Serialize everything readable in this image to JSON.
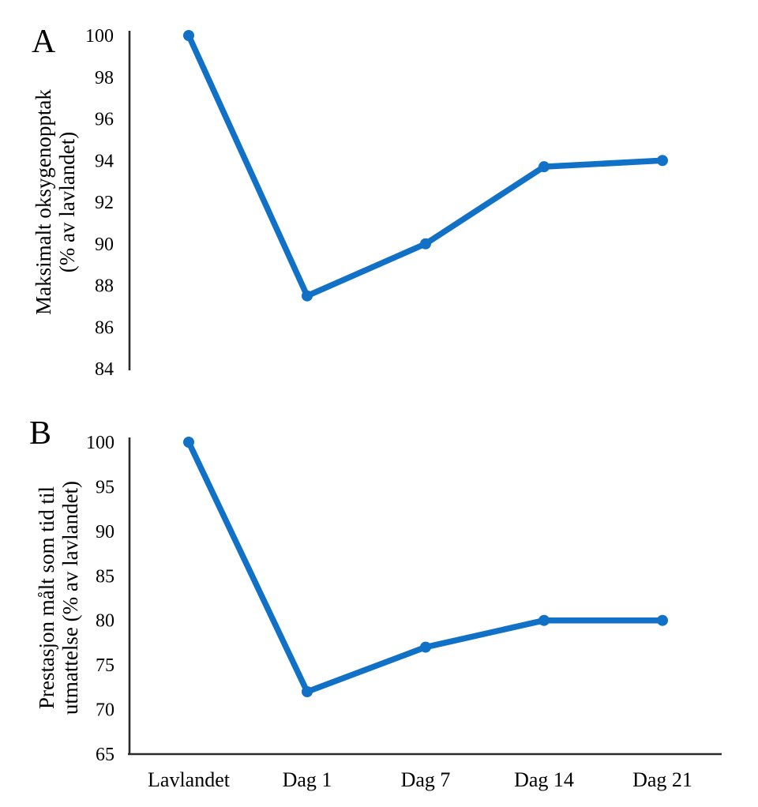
{
  "figure": {
    "description_panels": [
      "A",
      "B"
    ],
    "x_axis_categories": [
      "Lavlandet",
      "Dag 1",
      "Dag 7",
      "Dag 14",
      "Dag 21"
    ]
  },
  "colors": {
    "line": "#1171C6",
    "axis": "#2b2b2b",
    "text": "#000000"
  },
  "chart_data": [
    {
      "type": "line",
      "panel_label": "A",
      "categories": [
        "Lavlandet",
        "Dag 1",
        "Dag 7",
        "Dag 14",
        "Dag 21"
      ],
      "values": [
        100,
        87.5,
        90,
        93.7,
        94
      ],
      "title": "",
      "xlabel": "",
      "ylabel": "Maksimalt oksygenopptak (% av lavlandet)",
      "ylabel_lines": [
        "Maksimalt oksygenopptak",
        "(% av lavlandet)"
      ],
      "ylim": [
        84,
        100
      ],
      "yticks": [
        100,
        98,
        96,
        94,
        92,
        90,
        88,
        86,
        84
      ],
      "grid": false,
      "legend": "none",
      "show_x_axis_line": false,
      "show_x_axis_labels": false,
      "line_color": "#1171C6",
      "marker": "circle"
    },
    {
      "type": "line",
      "panel_label": "B",
      "categories": [
        "Lavlandet",
        "Dag 1",
        "Dag 7",
        "Dag 14",
        "Dag 21"
      ],
      "values": [
        100,
        72,
        77,
        80,
        80
      ],
      "title": "",
      "xlabel": "",
      "ylabel": "Prestasjon målt som tid til utmattelse (% av lavlandet)",
      "ylabel_lines": [
        "Prestasjon målt som tid til",
        "utmattelse (% av lavlandet)"
      ],
      "ylim": [
        65,
        100
      ],
      "yticks": [
        100,
        95,
        90,
        85,
        80,
        75,
        70,
        65
      ],
      "grid": false,
      "legend": "none",
      "show_x_axis_line": true,
      "show_x_axis_labels": true,
      "line_color": "#1171C6",
      "marker": "circle"
    }
  ]
}
